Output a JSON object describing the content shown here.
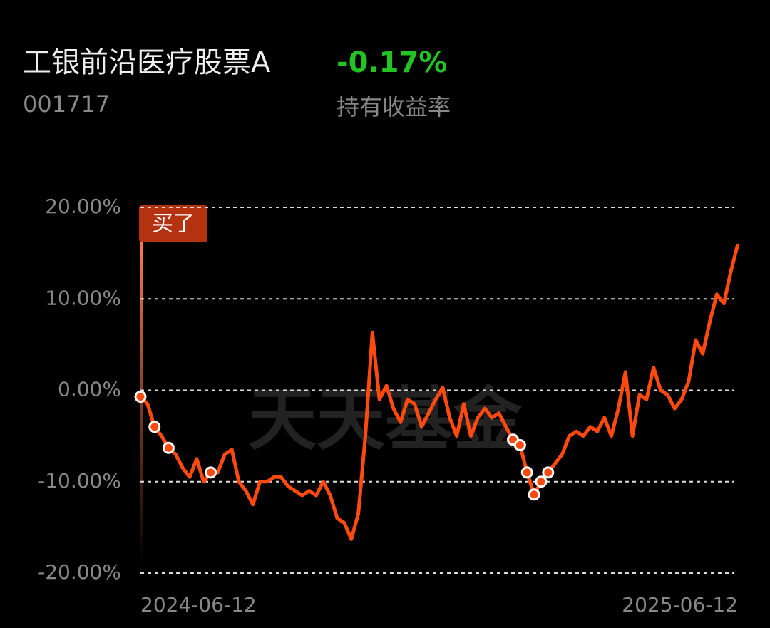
{
  "header": {
    "fund_name": "工银前沿医疗股票A",
    "return_value": "-0.17%",
    "fund_code": "001717",
    "return_label": "持有收益率"
  },
  "watermark": "天天基金",
  "chart_data": {
    "type": "line",
    "color": "#ff4a0f",
    "buy_label": "买了",
    "categories": [
      "2024-06-12",
      null,
      null,
      null,
      null,
      null,
      null,
      null,
      null,
      null,
      null,
      null,
      null,
      null,
      null,
      null,
      null,
      null,
      null,
      null,
      null,
      null,
      null,
      null,
      null,
      null,
      null,
      null,
      null,
      null,
      null,
      null,
      null,
      null,
      null,
      null,
      null,
      null,
      null,
      null,
      null,
      null,
      null,
      null,
      null,
      null,
      null,
      null,
      null,
      null,
      null,
      null,
      null,
      null,
      null,
      null,
      null,
      null,
      null,
      null,
      null,
      null,
      null,
      null,
      null,
      null,
      null,
      null,
      null,
      null,
      null,
      null,
      null,
      null,
      null,
      null,
      null,
      null,
      null,
      null,
      null,
      null,
      null,
      null,
      null,
      "2025-06-12"
    ],
    "values": [
      -0.7,
      -1.5,
      -4,
      -5,
      -6.3,
      -7,
      -8.5,
      -9.5,
      -7.5,
      -10,
      -9,
      -9,
      -7,
      -6.5,
      -10,
      -11,
      -12.5,
      -10,
      -10,
      -9.5,
      -9.5,
      -10.5,
      -11,
      -11.5,
      -11,
      -11.5,
      -10,
      -11.5,
      -14,
      -14.5,
      -16.3,
      -13.5,
      -5,
      6.3,
      -1,
      0.5,
      -2,
      -3.5,
      -1,
      -1.5,
      -4,
      -2.5,
      -1,
      0.3,
      -3,
      -5,
      -1.5,
      -5,
      -3,
      -2,
      -3,
      -2.5,
      -4,
      -5.4,
      -6,
      -9,
      -11.4,
      -10,
      -9,
      -8,
      -7,
      -5,
      -4.5,
      -5,
      -4,
      -4.5,
      -3,
      -5,
      -2,
      2,
      -5,
      -0.5,
      -1,
      2.5,
      0,
      -0.5,
      -2,
      -1,
      1,
      5.5,
      4,
      7.5,
      10.5,
      9.5,
      13,
      16
    ],
    "markers": [
      -0.7,
      null,
      -4,
      null,
      -6.3,
      null,
      null,
      null,
      null,
      null,
      -9,
      null,
      null,
      null,
      null,
      null,
      null,
      null,
      null,
      null,
      null,
      null,
      null,
      null,
      null,
      null,
      null,
      null,
      null,
      null,
      null,
      null,
      null,
      null,
      null,
      null,
      null,
      null,
      null,
      null,
      null,
      null,
      null,
      null,
      null,
      null,
      null,
      null,
      null,
      null,
      null,
      null,
      null,
      -5.4,
      -6,
      -9,
      -11.4,
      -10,
      -9,
      null,
      null,
      null,
      null,
      null,
      null,
      null,
      null,
      null,
      null,
      null,
      null,
      null,
      null,
      null,
      null,
      null,
      null,
      null,
      null,
      null,
      null,
      null,
      null,
      null,
      null,
      null
    ],
    "ylim": [
      -20,
      20
    ],
    "yticks": [
      {
        "value": 20,
        "label": "20.00%"
      },
      {
        "value": 10,
        "label": "10.00%"
      },
      {
        "value": 0,
        "label": "0.00%"
      },
      {
        "value": -10,
        "label": "-10.00%"
      },
      {
        "value": -20,
        "label": "-20.00%"
      }
    ],
    "grid": true
  }
}
